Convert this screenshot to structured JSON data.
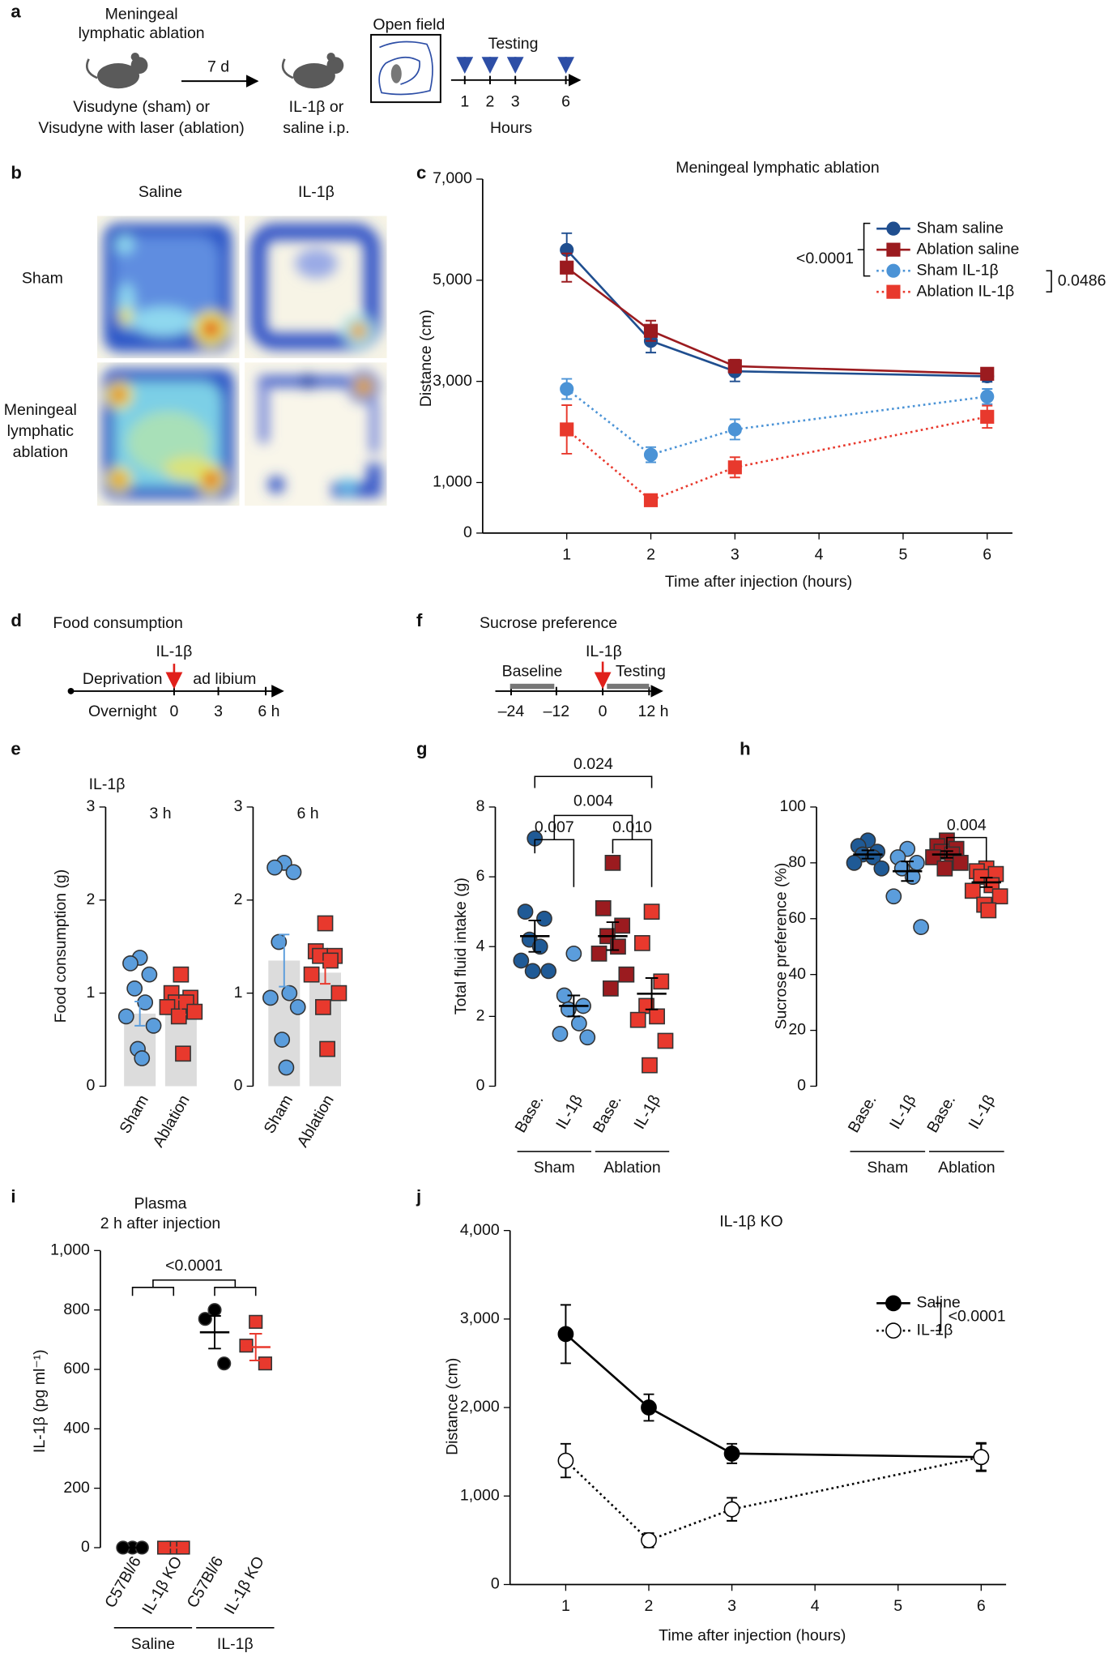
{
  "panel_labels": [
    "a",
    "b",
    "c",
    "d",
    "e",
    "f",
    "g",
    "h",
    "i",
    "j"
  ],
  "schematic_a": {
    "title_lines": [
      "Meningeal",
      "lymphatic ablation"
    ],
    "interval": "7 d",
    "treatment_lines": [
      "Visudyne (sham) or",
      "Visudyne with laser (ablation)"
    ],
    "injection_lines": [
      "IL-1β or",
      "saline i.p."
    ],
    "open_field": "Open field",
    "testing": "Testing",
    "hours": [
      1,
      2,
      3,
      6
    ],
    "hours_label": "Hours"
  },
  "heatmap_b": {
    "columns": [
      "Saline",
      "IL-1β"
    ],
    "rows": [
      [
        "Sham"
      ],
      [
        "Meningeal",
        "lymphatic",
        "ablation"
      ]
    ]
  },
  "schematic_d": {
    "title": "Food consumption",
    "stimulus": "IL-1β",
    "phases": [
      "Deprivation",
      "ad libium"
    ],
    "axis_labels": [
      "Overnight",
      "0",
      "3",
      "6 h"
    ]
  },
  "schematic_f": {
    "title": "Sucrose preference",
    "stimulus": "IL-1β",
    "phases": [
      "Baseline",
      "Testing"
    ],
    "axis_labels": [
      "–24",
      "–12",
      "0",
      "12 h"
    ]
  },
  "chart_data": [
    {
      "type": "line",
      "title": "Meningeal lymphatic ablation",
      "x_label": "Time after injection (hours)",
      "y_label": "Distance (cm)",
      "x": [
        1,
        2,
        3,
        6
      ],
      "xlim": [
        0,
        6.3
      ],
      "xticks": [
        1,
        2,
        3,
        4,
        5,
        6
      ],
      "ylim": [
        0,
        7000
      ],
      "yticks": [
        0,
        {
          "value": 1000,
          "label": "1,000"
        },
        {
          "value": 3000,
          "label": "3,000"
        },
        {
          "value": 5000,
          "label": "5,000"
        },
        {
          "value": 7000,
          "label": "7,000"
        }
      ],
      "series": [
        {
          "name": "Sham saline",
          "color": "#1f4e8f",
          "marker": "circle",
          "line_style": "solid",
          "values": [
            5600,
            3800,
            3200,
            3100
          ],
          "errors": [
            330,
            230,
            200,
            110
          ]
        },
        {
          "name": "Ablation saline",
          "color": "#9b1b1f",
          "marker": "square",
          "line_style": "solid",
          "values": [
            5250,
            4000,
            3300,
            3150
          ],
          "errors": [
            280,
            200,
            130,
            90
          ]
        },
        {
          "name": "Sham IL-1β",
          "color": "#4b93d6",
          "marker": "circle",
          "line_style": "dotted",
          "values": [
            2850,
            1550,
            2050,
            2700
          ],
          "errors": [
            200,
            150,
            200,
            150
          ]
        },
        {
          "name": "Ablation IL-1β",
          "color": "#e8392d",
          "marker": "square",
          "line_style": "dotted",
          "values": [
            2050,
            650,
            1300,
            2300
          ],
          "errors": [
            480,
            80,
            200,
            220
          ]
        }
      ],
      "annotations": [
        "<0.0001",
        "0.0486"
      ]
    },
    {
      "type": "bar",
      "header": "IL-1β",
      "title": "3 h",
      "y_label": "Food consumption (g)",
      "categories": [
        "Sham",
        "Ablation"
      ],
      "values": [
        0.78,
        0.85
      ],
      "errors": [
        0.13,
        0.08
      ],
      "points": [
        [
          1.38,
          1.32,
          1.2,
          1.05,
          0.9,
          0.75,
          0.65,
          0.4,
          0.3
        ],
        [
          1.2,
          1.0,
          0.95,
          0.9,
          0.9,
          0.85,
          0.8,
          0.75,
          0.35
        ]
      ],
      "colors": [
        "#5b9ddc",
        "#e8392d"
      ],
      "markers": [
        "circle",
        "square"
      ],
      "bar_color": "#dcdcdc",
      "ylim": [
        0,
        3
      ],
      "yticks": [
        0,
        1,
        2,
        3
      ]
    },
    {
      "type": "bar",
      "title": "6 h",
      "categories": [
        "Sham",
        "Ablation"
      ],
      "values": [
        1.35,
        1.22
      ],
      "errors": [
        0.28,
        0.12
      ],
      "points": [
        [
          2.4,
          2.35,
          2.3,
          1.55,
          1.0,
          0.95,
          0.85,
          0.5,
          0.2
        ],
        [
          1.75,
          1.45,
          1.4,
          1.4,
          1.35,
          1.2,
          1.0,
          0.85,
          0.4
        ]
      ],
      "colors": [
        "#5b9ddc",
        "#e8392d"
      ],
      "markers": [
        "circle",
        "square"
      ],
      "bar_color": "#dcdcdc",
      "ylim": [
        0,
        3
      ],
      "yticks": [
        0,
        1,
        2,
        3
      ]
    },
    {
      "type": "dot",
      "y_label": "Total fluid intake (g)",
      "categories": [
        "Base.",
        "IL-1β",
        "Base.",
        "IL-1β"
      ],
      "groups": [
        "Sham",
        "Ablation"
      ],
      "values": [
        4.3,
        2.3,
        4.3,
        2.65
      ],
      "errors": [
        0.45,
        0.3,
        0.4,
        0.45
      ],
      "points": [
        [
          7.1,
          5.0,
          4.8,
          4.2,
          4.0,
          3.6,
          3.3,
          3.3
        ],
        [
          3.8,
          2.6,
          2.3,
          2.2,
          1.8,
          1.5,
          1.4
        ],
        [
          6.4,
          5.1,
          4.6,
          4.3,
          4.0,
          3.8,
          3.2,
          2.8
        ],
        [
          5.0,
          4.1,
          3.0,
          2.3,
          2.0,
          1.9,
          1.3,
          0.6
        ]
      ],
      "colors": [
        "#1f5a96",
        "#5b9ddc",
        "#9b1b1f",
        "#e8392d"
      ],
      "markers": [
        "circle",
        "circle",
        "square",
        "square"
      ],
      "mean_color": "#000000",
      "ylim": [
        0,
        8
      ],
      "yticks": [
        0,
        2,
        4,
        6,
        8
      ],
      "annotations": [
        "0.024",
        "0.004",
        "0.007",
        "0.010"
      ]
    },
    {
      "type": "dot",
      "y_label": "Sucrose preference (%)",
      "categories": [
        "Base.",
        "IL-1β",
        "Base.",
        "IL-1β"
      ],
      "groups": [
        "Sham",
        "Ablation"
      ],
      "values": [
        83,
        77,
        83,
        73
      ],
      "errors": [
        1.5,
        3.5,
        1.2,
        1.7
      ],
      "points": [
        [
          88,
          86,
          84,
          83,
          82,
          80,
          78
        ],
        [
          85,
          82,
          80,
          78,
          75,
          68,
          57
        ],
        [
          88,
          86,
          85,
          84,
          83,
          82,
          80,
          78
        ],
        [
          78,
          77,
          76,
          75,
          72,
          70,
          68,
          65,
          63
        ]
      ],
      "colors": [
        "#1f5a96",
        "#5b9ddc",
        "#9b1b1f",
        "#e8392d"
      ],
      "markers": [
        "circle",
        "circle",
        "square",
        "square"
      ],
      "mean_color": "#000000",
      "ylim": [
        0,
        100
      ],
      "yticks": [
        0,
        20,
        40,
        60,
        80,
        100
      ],
      "annotations": [
        "0.004"
      ]
    },
    {
      "type": "dot",
      "title": [
        "Plasma",
        "2 h after injection"
      ],
      "y_label": "IL-1β (pg ml⁻¹)",
      "categories": [
        "C57Bl/6",
        "IL-1β KO",
        "C57Bl/6",
        "IL-1β KO"
      ],
      "groups": [
        "Saline",
        "IL-1β"
      ],
      "values": [
        0,
        0,
        725,
        675
      ],
      "errors": [
        0,
        0,
        55,
        45
      ],
      "points": [
        [
          0,
          0,
          0
        ],
        [
          0,
          0,
          0
        ],
        [
          800,
          770,
          620
        ],
        [
          760,
          680,
          620
        ]
      ],
      "colors": [
        "#000000",
        "#e8392d",
        "#000000",
        "#e8392d"
      ],
      "markers": [
        "circle",
        "square",
        "circle",
        "square"
      ],
      "ylim": [
        0,
        1000
      ],
      "yticks": [
        0,
        200,
        400,
        600,
        800,
        {
          "value": 1000,
          "label": "1,000"
        }
      ],
      "annotations": [
        "<0.0001"
      ]
    },
    {
      "type": "line",
      "title": "IL-1β KO",
      "x_label": "Time after injection (hours)",
      "y_label": "Distance (cm)",
      "x": [
        1,
        2,
        3,
        6
      ],
      "xlim": [
        0.33,
        6.3
      ],
      "xticks": [
        1,
        2,
        3,
        4,
        5,
        6
      ],
      "ylim": [
        0,
        4000
      ],
      "yticks": [
        0,
        {
          "value": 1000,
          "label": "1,000"
        },
        {
          "value": 2000,
          "label": "2,000"
        },
        {
          "value": 3000,
          "label": "3,000"
        },
        {
          "value": 4000,
          "label": "4,000"
        }
      ],
      "series": [
        {
          "name": "Saline",
          "color": "#000000",
          "marker": "circle",
          "line_style": "solid",
          "values": [
            2830,
            2000,
            1480,
            1440
          ],
          "errors": [
            330,
            150,
            110,
            150
          ]
        },
        {
          "name": "IL-1β",
          "color": "#000000",
          "marker": "circle",
          "marker_fill": "#ffffff",
          "line_style": "dotted",
          "values": [
            1400,
            500,
            850,
            1440
          ],
          "errors": [
            190,
            80,
            130,
            160
          ]
        }
      ],
      "annotations": [
        "<0.0001"
      ]
    }
  ]
}
